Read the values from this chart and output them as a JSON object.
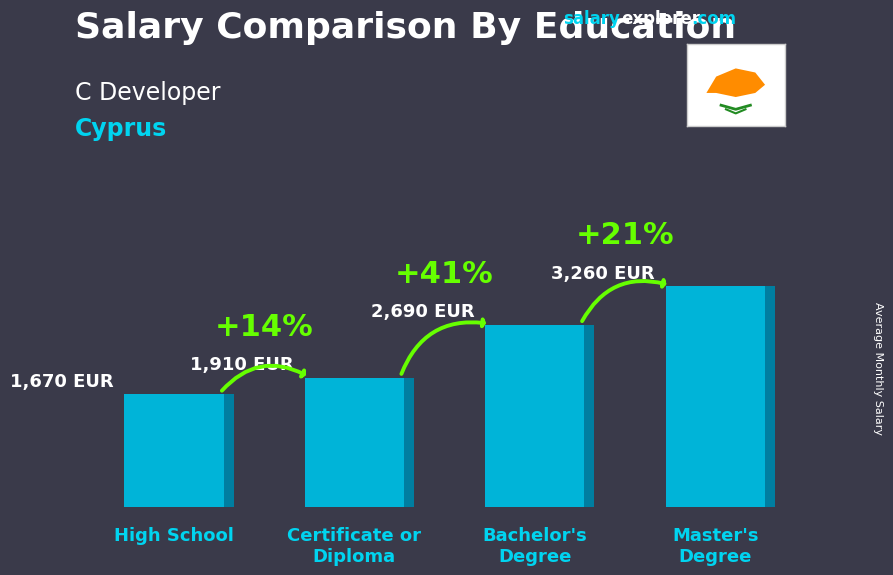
{
  "title_salary": "Salary Comparison By Education",
  "subtitle_role": "C Developer",
  "subtitle_country": "Cyprus",
  "ylabel": "Average Monthly Salary",
  "website_salary": "salary",
  "website_explorer": "explorer",
  "website_com": ".com",
  "categories": [
    "High School",
    "Certificate or\nDiploma",
    "Bachelor's\nDegree",
    "Master's\nDegree"
  ],
  "values": [
    1670,
    1910,
    2690,
    3260
  ],
  "value_labels": [
    "1,670 EUR",
    "1,910 EUR",
    "2,690 EUR",
    "3,260 EUR"
  ],
  "pct_labels": [
    "+14%",
    "+41%",
    "+21%"
  ],
  "bar_color_main": "#00b4d8",
  "bar_color_side": "#007ea0",
  "bar_color_top": "#00d4f0",
  "bg_color": "#3a3a4a",
  "text_color_white": "#ffffff",
  "text_color_cyan": "#00d4f0",
  "text_color_green": "#66ff00",
  "arrow_color": "#66ff00",
  "ylim": [
    0,
    4200
  ],
  "title_fontsize": 26,
  "subtitle_role_fontsize": 17,
  "subtitle_country_fontsize": 17,
  "value_label_fontsize": 13,
  "pct_label_fontsize": 22,
  "xtick_fontsize": 13,
  "website_fontsize": 12,
  "ylabel_fontsize": 8
}
